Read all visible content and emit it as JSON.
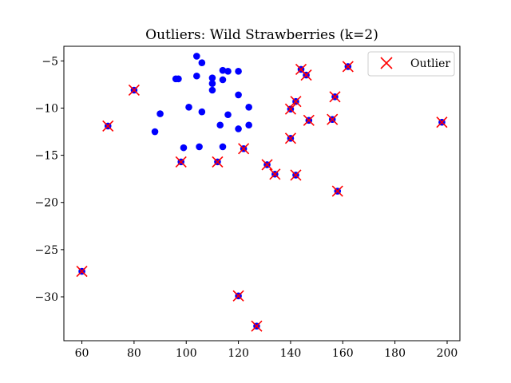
{
  "chart_data": {
    "type": "scatter",
    "title": "Outliers: Wild Strawberries (k=2)",
    "xlabel": "",
    "ylabel": "",
    "xlim": [
      53.1,
      204.9
    ],
    "ylim": [
      -34.65,
      -3.45
    ],
    "x_ticks": [
      60,
      80,
      100,
      120,
      140,
      160,
      180,
      200
    ],
    "y_ticks": [
      -5,
      -10,
      -15,
      -20,
      -25,
      -30
    ],
    "legend": {
      "position": "top-right",
      "entries": [
        "Outlier"
      ]
    },
    "grid": false,
    "colors": {
      "points": "#0000ff",
      "outlier_marker": "#ff0000"
    },
    "points": [
      {
        "x": 104,
        "y": -4.5
      },
      {
        "x": 106,
        "y": -5.2
      },
      {
        "x": 114,
        "y": -6.0
      },
      {
        "x": 116,
        "y": -6.1
      },
      {
        "x": 120,
        "y": -6.1
      },
      {
        "x": 96,
        "y": -6.9
      },
      {
        "x": 97,
        "y": -6.9
      },
      {
        "x": 104,
        "y": -6.6
      },
      {
        "x": 110,
        "y": -6.8
      },
      {
        "x": 114,
        "y": -7.0
      },
      {
        "x": 110,
        "y": -7.4
      },
      {
        "x": 110,
        "y": -8.1
      },
      {
        "x": 120,
        "y": -8.6
      },
      {
        "x": 101,
        "y": -9.9
      },
      {
        "x": 106,
        "y": -10.4
      },
      {
        "x": 124,
        "y": -9.9
      },
      {
        "x": 90,
        "y": -10.6
      },
      {
        "x": 116,
        "y": -10.7
      },
      {
        "x": 113,
        "y": -11.8
      },
      {
        "x": 124,
        "y": -11.8
      },
      {
        "x": 120,
        "y": -12.2
      },
      {
        "x": 88,
        "y": -12.5
      },
      {
        "x": 99,
        "y": -14.2
      },
      {
        "x": 105,
        "y": -14.1
      },
      {
        "x": 114,
        "y": -14.1
      },
      {
        "x": 60,
        "y": -27.3
      },
      {
        "x": 70,
        "y": -11.9
      },
      {
        "x": 80,
        "y": -8.1
      },
      {
        "x": 98,
        "y": -15.7
      },
      {
        "x": 112,
        "y": -15.7
      },
      {
        "x": 120,
        "y": -29.9
      },
      {
        "x": 122,
        "y": -14.3
      },
      {
        "x": 127,
        "y": -33.1
      },
      {
        "x": 131,
        "y": -16.0
      },
      {
        "x": 134,
        "y": -17.0
      },
      {
        "x": 140,
        "y": -13.2
      },
      {
        "x": 140,
        "y": -10.1
      },
      {
        "x": 142,
        "y": -9.3
      },
      {
        "x": 142,
        "y": -17.1
      },
      {
        "x": 144,
        "y": -5.9
      },
      {
        "x": 146,
        "y": -6.5
      },
      {
        "x": 147,
        "y": -11.3
      },
      {
        "x": 156,
        "y": -11.2
      },
      {
        "x": 157,
        "y": -8.8
      },
      {
        "x": 158,
        "y": -18.8
      },
      {
        "x": 162,
        "y": -5.6
      },
      {
        "x": 198,
        "y": -11.5
      }
    ],
    "outliers": [
      {
        "x": 60,
        "y": -27.3
      },
      {
        "x": 70,
        "y": -11.9
      },
      {
        "x": 80,
        "y": -8.1
      },
      {
        "x": 98,
        "y": -15.7
      },
      {
        "x": 112,
        "y": -15.7
      },
      {
        "x": 120,
        "y": -29.9
      },
      {
        "x": 122,
        "y": -14.3
      },
      {
        "x": 127,
        "y": -33.1
      },
      {
        "x": 131,
        "y": -16.0
      },
      {
        "x": 134,
        "y": -17.0
      },
      {
        "x": 140,
        "y": -13.2
      },
      {
        "x": 140,
        "y": -10.1
      },
      {
        "x": 142,
        "y": -9.3
      },
      {
        "x": 142,
        "y": -17.1
      },
      {
        "x": 144,
        "y": -5.9
      },
      {
        "x": 146,
        "y": -6.5
      },
      {
        "x": 147,
        "y": -11.3
      },
      {
        "x": 156,
        "y": -11.2
      },
      {
        "x": 157,
        "y": -8.8
      },
      {
        "x": 158,
        "y": -18.8
      },
      {
        "x": 162,
        "y": -5.6
      },
      {
        "x": 198,
        "y": -11.5
      }
    ]
  }
}
